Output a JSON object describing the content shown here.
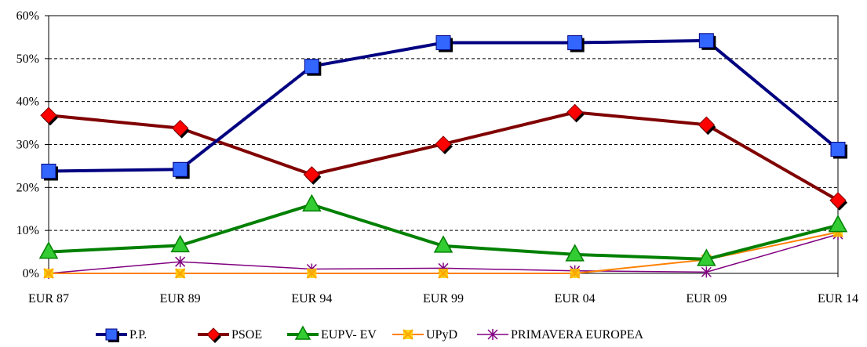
{
  "chart_data": {
    "type": "line",
    "title": "",
    "xlabel": "",
    "ylabel": "",
    "categories": [
      "EUR 87",
      "EUR 89",
      "EUR 94",
      "EUR 99",
      "EUR 04",
      "EUR 09",
      "EUR 14"
    ],
    "ylim": [
      0,
      60
    ],
    "y_ticks": [
      "0%",
      "10%",
      "20%",
      "30%",
      "40%",
      "50%",
      "60%"
    ],
    "y_unit": "%",
    "grid": "horizontal dashed",
    "legend_position": "bottom",
    "series": [
      {
        "name": "P.P.",
        "values": [
          23.8,
          24.2,
          48.2,
          53.7,
          53.7,
          54.2,
          28.9
        ],
        "color": "#000080",
        "marker": "square",
        "marker_color": "#3366ff",
        "line_width": 4
      },
      {
        "name": "PSOE",
        "values": [
          36.8,
          33.8,
          23.0,
          30.1,
          37.5,
          34.6,
          17.0
        ],
        "color": "#800000",
        "marker": "diamond",
        "marker_color": "#ff0000",
        "line_width": 4
      },
      {
        "name": "EUPV- EV",
        "values": [
          5.0,
          6.5,
          16.0,
          6.4,
          4.4,
          3.3,
          11.2
        ],
        "color": "#008000",
        "marker": "triangle",
        "marker_color": "#33cc33",
        "line_width": 4
      },
      {
        "name": "UPyD",
        "values": [
          0,
          0,
          0,
          0,
          0,
          3.2,
          9.6
        ],
        "color": "#ff8000",
        "marker": "x",
        "marker_color": "#ffcc00",
        "line_width": 2
      },
      {
        "name": "PRIMAVERA EUROPEA",
        "values": [
          0,
          2.7,
          1.0,
          1.2,
          0.6,
          0.3,
          9.1
        ],
        "color": "#800080",
        "marker": "star",
        "marker_color": "#800080",
        "line_width": 1.5
      }
    ]
  }
}
